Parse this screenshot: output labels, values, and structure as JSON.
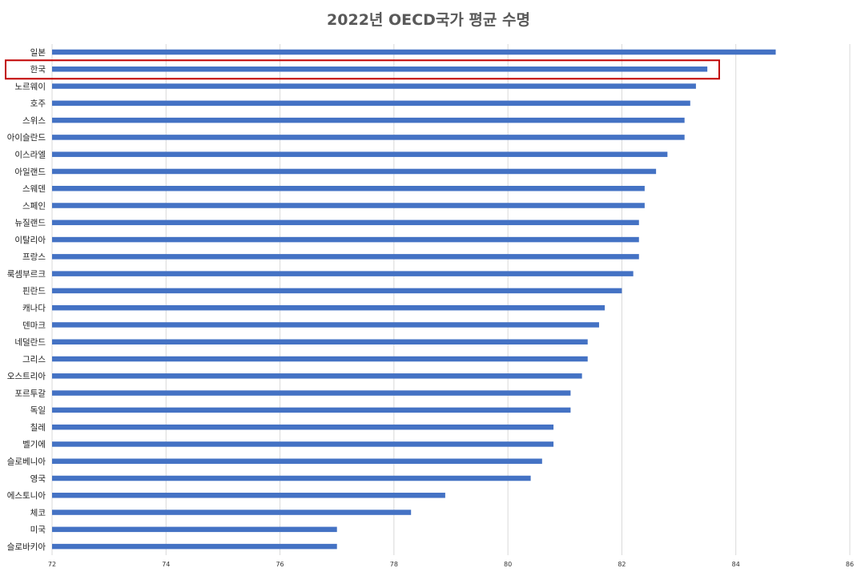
{
  "chart_data": {
    "type": "bar",
    "orientation": "horizontal",
    "title": "2022년 OECD국가 평균 수명",
    "xlabel": "",
    "ylabel": "",
    "xlim": [
      72,
      86
    ],
    "xticks": [
      "72",
      "74",
      "76",
      "78",
      "80",
      "82",
      "84",
      "86"
    ],
    "grid": true,
    "legend": "none",
    "bar_color": "#4472C4",
    "highlight": {
      "category": "한국",
      "color": "#C00000"
    },
    "categories": [
      "일본",
      "한국",
      "노르웨이",
      "호주",
      "스위스",
      "아이슬란드",
      "이스라엘",
      "아일랜드",
      "스웨덴",
      "스페인",
      "뉴질랜드",
      "이탈리아",
      "프랑스",
      "룩셈부르크",
      "핀란드",
      "캐나다",
      "덴마크",
      "네덜란드",
      "그리스",
      "오스트리아",
      "포르투갈",
      "독일",
      "칠레",
      "벨기에",
      "슬로베니아",
      "영국",
      "에스토니아",
      "체코",
      "미국",
      "슬로바키아"
    ],
    "values": [
      84.7,
      83.5,
      83.3,
      83.2,
      83.1,
      83.1,
      82.8,
      82.6,
      82.4,
      82.4,
      82.3,
      82.3,
      82.3,
      82.2,
      82.0,
      81.7,
      81.6,
      81.4,
      81.4,
      81.3,
      81.1,
      81.1,
      80.8,
      80.8,
      80.6,
      80.4,
      78.9,
      78.3,
      77.0,
      77.0
    ]
  }
}
